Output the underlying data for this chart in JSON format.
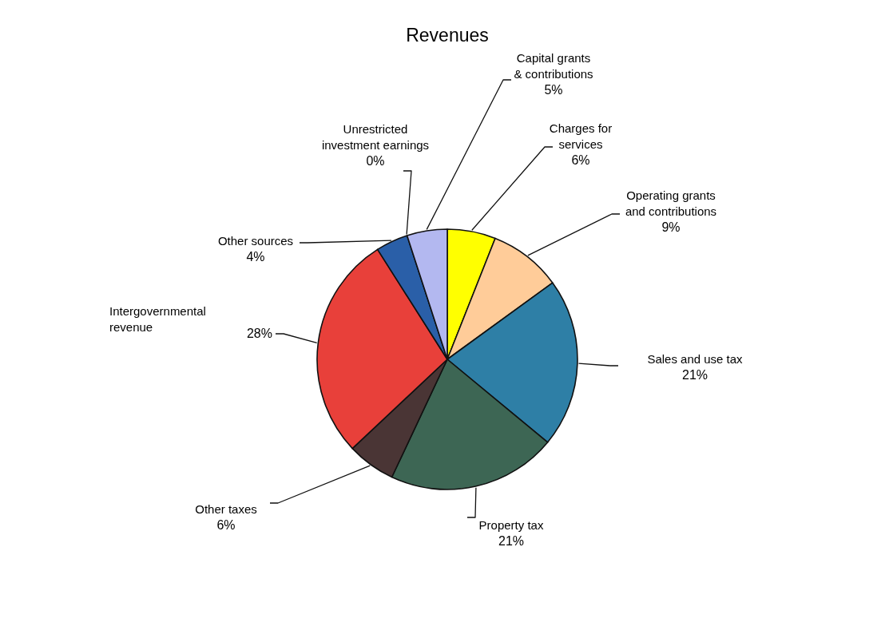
{
  "chart_data": {
    "type": "pie",
    "title": "Revenues",
    "categories": [
      "Charges for services",
      "Operating grants and contributions",
      "Sales and use tax",
      "Property tax",
      "Other taxes",
      "Intergovernmental revenue",
      "Other sources",
      "Unrestricted investment earnings",
      "Capital grants & contributions"
    ],
    "values": [
      6,
      9,
      21,
      21,
      6,
      28,
      4,
      0,
      5
    ],
    "value_labels": [
      "6%",
      "9%",
      "21%",
      "21%",
      "6%",
      "28%",
      "4%",
      "0%",
      "5%"
    ],
    "colors": [
      "#ffff00",
      "#ffcc99",
      "#2e7fa6",
      "#3d6654",
      "#4a3535",
      "#e8403a",
      "#2a5fa8",
      null,
      "#b3b8f0"
    ]
  }
}
